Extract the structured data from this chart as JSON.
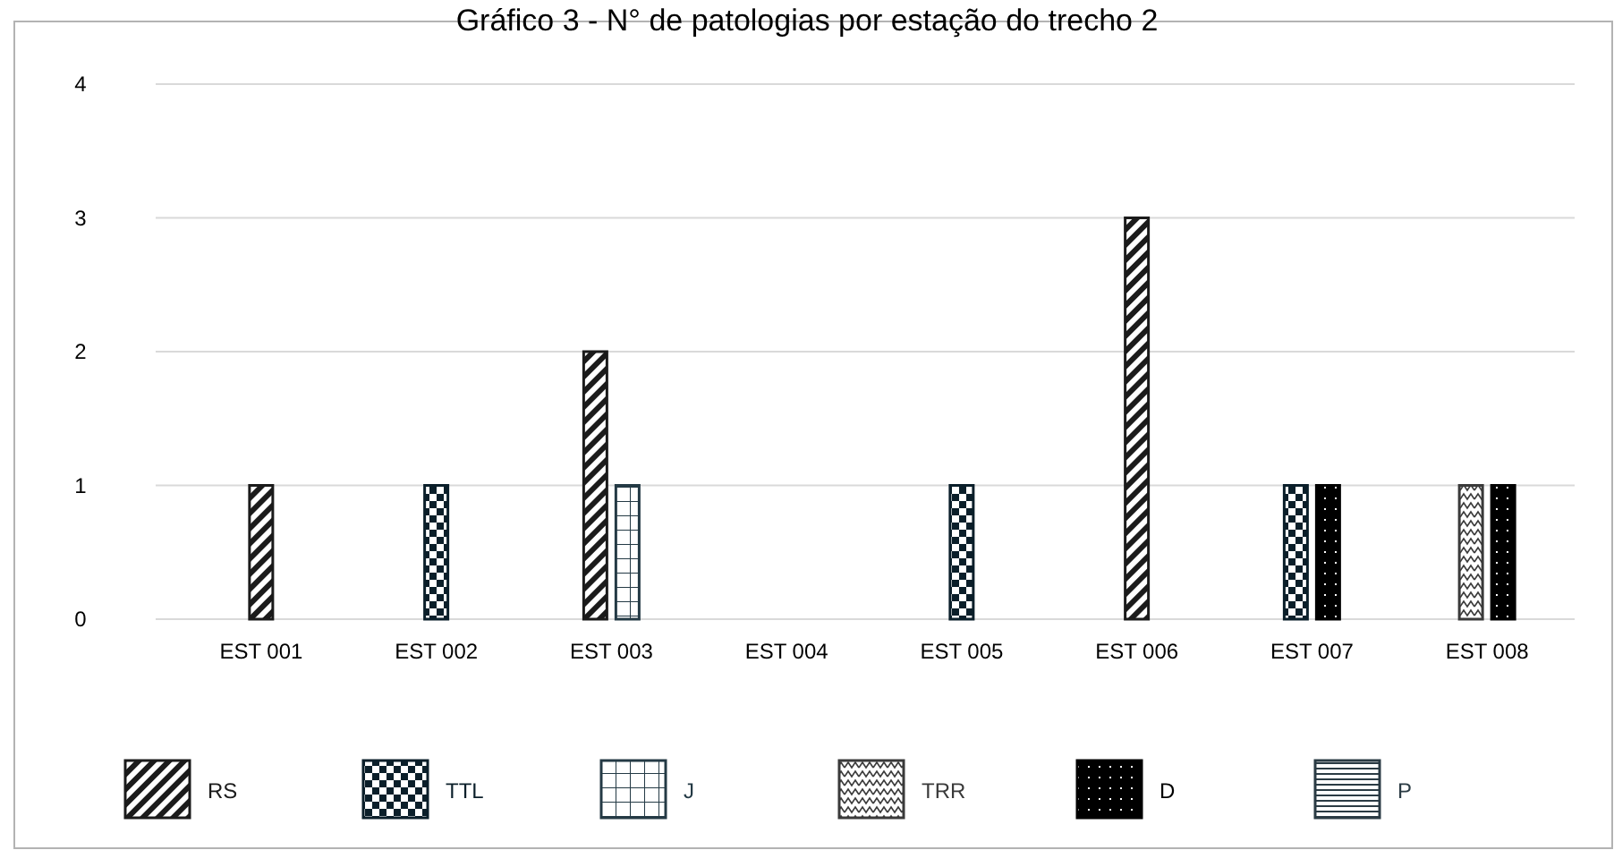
{
  "chart_data": {
    "type": "bar",
    "title": "Gráfico 3 - N° de patologias por estação do trecho 2",
    "categories": [
      "EST 001",
      "EST 002",
      "EST 003",
      "EST 004",
      "EST 005",
      "EST 006",
      "EST 007",
      "EST 008"
    ],
    "series": [
      {
        "name": "RS",
        "color": "#1b1b1b",
        "values": [
          1,
          null,
          2,
          null,
          null,
          3,
          null,
          null
        ]
      },
      {
        "name": "TTL",
        "color": "#0b1f2a",
        "values": [
          null,
          1,
          null,
          null,
          1,
          null,
          1,
          null
        ]
      },
      {
        "name": "J",
        "color": "#243a45",
        "values": [
          null,
          null,
          1,
          null,
          null,
          null,
          null,
          null
        ]
      },
      {
        "name": "TRR",
        "color": "#3a3a3a",
        "values": [
          null,
          null,
          null,
          null,
          null,
          null,
          null,
          1
        ]
      },
      {
        "name": "D",
        "color": "#000000",
        "values": [
          null,
          null,
          null,
          null,
          null,
          null,
          1,
          1
        ]
      },
      {
        "name": "P",
        "color": "#2b3b44",
        "values": [
          null,
          null,
          null,
          null,
          null,
          null,
          null,
          null
        ]
      }
    ],
    "ylim": [
      0,
      4
    ],
    "yticks": [
      0,
      1,
      2,
      3,
      4
    ],
    "grid": "y",
    "legend": "bottom"
  }
}
